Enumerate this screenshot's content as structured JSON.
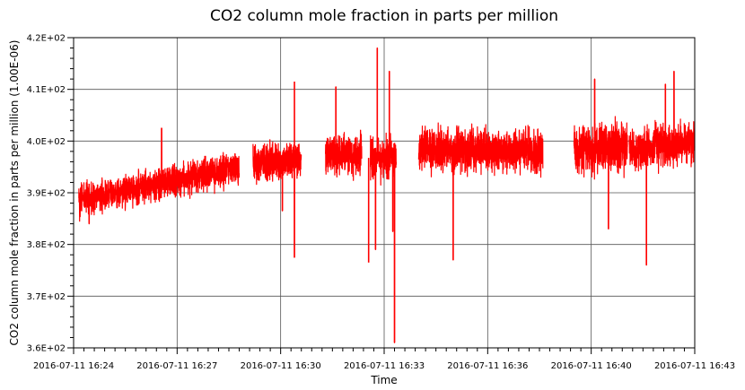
{
  "chart_data": {
    "type": "line",
    "title": "CO2 column mole fraction in parts per million",
    "xlabel": "Time",
    "ylabel": "CO2 column mole fraction in parts per million (1.00E-06)",
    "ylim": [
      360,
      420
    ],
    "xlim_minutes": [
      0,
      18
    ],
    "y_ticks": [
      {
        "value": 360,
        "label": "3.6E+02"
      },
      {
        "value": 370,
        "label": "3.7E+02"
      },
      {
        "value": 380,
        "label": "3.8E+02"
      },
      {
        "value": 390,
        "label": "3.9E+02"
      },
      {
        "value": 400,
        "label": "4.0E+02"
      },
      {
        "value": 410,
        "label": "4.1E+02"
      },
      {
        "value": 420,
        "label": "4.2E+02"
      }
    ],
    "x_ticks": [
      {
        "minute": 0,
        "label": "2016-07-11 16:24"
      },
      {
        "minute": 3,
        "label": "2016-07-11 16:27"
      },
      {
        "minute": 6,
        "label": "2016-07-11 16:30"
      },
      {
        "minute": 9,
        "label": "2016-07-11 16:33"
      },
      {
        "minute": 12,
        "label": "2016-07-11 16:36"
      },
      {
        "minute": 15,
        "label": "2016-07-11 16:40"
      },
      {
        "minute": 18,
        "label": "2016-07-11 16:43"
      }
    ],
    "grid": true,
    "series": [
      {
        "color": "#ff0000",
        "segments": [
          {
            "start": 0.15,
            "end": 4.8,
            "center_start": 388.5,
            "center_end": 395.0,
            "band": 4.5
          },
          {
            "start": 5.2,
            "end": 6.6,
            "center_start": 395.5,
            "center_end": 396.5,
            "band": 5.0
          },
          {
            "start": 7.3,
            "end": 8.35,
            "center_start": 397.0,
            "center_end": 397.5,
            "band": 5.5
          },
          {
            "start": 8.6,
            "end": 9.35,
            "center_start": 396.5,
            "center_end": 397.0,
            "band": 6.0
          },
          {
            "start": 10.0,
            "end": 13.6,
            "center_start": 398.5,
            "center_end": 398.0,
            "band": 6.0
          },
          {
            "start": 14.5,
            "end": 16.05,
            "center_start": 398.5,
            "center_end": 399.0,
            "band": 7.0
          },
          {
            "start": 16.1,
            "end": 18.0,
            "center_start": 398.5,
            "center_end": 399.5,
            "band": 5.5
          }
        ],
        "spikes": [
          {
            "minute": 0.45,
            "value": 384.0
          },
          {
            "minute": 2.55,
            "value": 402.5
          },
          {
            "minute": 6.05,
            "value": 386.5
          },
          {
            "minute": 6.4,
            "value": 411.5
          },
          {
            "minute": 6.4,
            "value": 377.5
          },
          {
            "minute": 7.6,
            "value": 410.5
          },
          {
            "minute": 8.55,
            "value": 376.5
          },
          {
            "minute": 8.8,
            "value": 418.0
          },
          {
            "minute": 8.75,
            "value": 379.0
          },
          {
            "minute": 9.15,
            "value": 413.5
          },
          {
            "minute": 9.3,
            "value": 361.0
          },
          {
            "minute": 9.25,
            "value": 382.5
          },
          {
            "minute": 11.0,
            "value": 377.0
          },
          {
            "minute": 15.1,
            "value": 412.0
          },
          {
            "minute": 15.5,
            "value": 383.0
          },
          {
            "minute": 16.6,
            "value": 376.0
          },
          {
            "minute": 17.4,
            "value": 413.5
          },
          {
            "minute": 17.15,
            "value": 411.0
          }
        ]
      }
    ]
  }
}
